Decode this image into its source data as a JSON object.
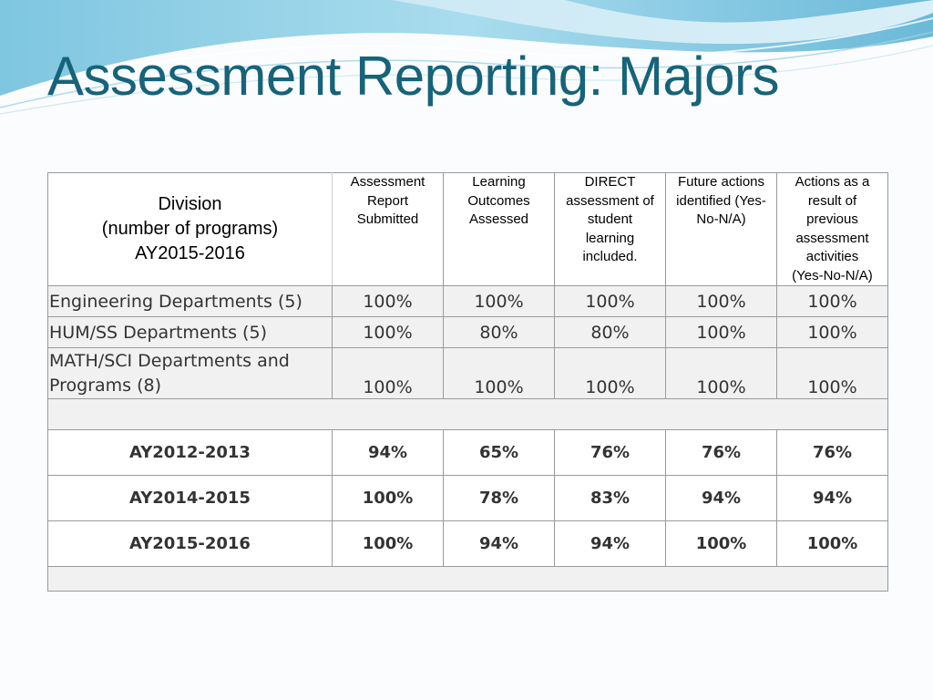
{
  "title": "Assessment Reporting: Majors",
  "header": {
    "division": [
      "Division",
      "(number of programs)",
      "AY2015-2016"
    ],
    "columns": [
      [
        "Assessment",
        "Report",
        "Submitted"
      ],
      [
        "Learning",
        "Outcomes",
        "Assessed"
      ],
      [
        "DIRECT",
        "assessment of",
        "student",
        "learning",
        "included."
      ],
      [
        "Future actions",
        "identified (Yes-",
        "No-N/A)"
      ],
      [
        "Actions as a",
        "result of",
        "previous",
        "assessment",
        "activities",
        "(Yes-No-N/A)"
      ]
    ]
  },
  "rows": [
    {
      "label": "Engineering Departments (5)",
      "values": [
        "100%",
        "100%",
        "100%",
        "100%",
        "100%"
      ]
    },
    {
      "label": "HUM/SS Departments (5)",
      "values": [
        "100%",
        "80%",
        "80%",
        "100%",
        "100%"
      ]
    },
    {
      "label": "MATH/SCI Departments and Programs (8)",
      "values": [
        "100%",
        "100%",
        "100%",
        "100%",
        "100%"
      ]
    }
  ],
  "summary": [
    {
      "label": "AY2012-2013",
      "values": [
        "94%",
        "65%",
        "76%",
        "76%",
        "76%"
      ]
    },
    {
      "label": "AY2014-2015",
      "values": [
        "100%",
        "78%",
        "83%",
        "94%",
        "94%"
      ]
    },
    {
      "label": "AY2015-2016",
      "values": [
        "100%",
        "94%",
        "94%",
        "100%",
        "100%"
      ]
    }
  ]
}
